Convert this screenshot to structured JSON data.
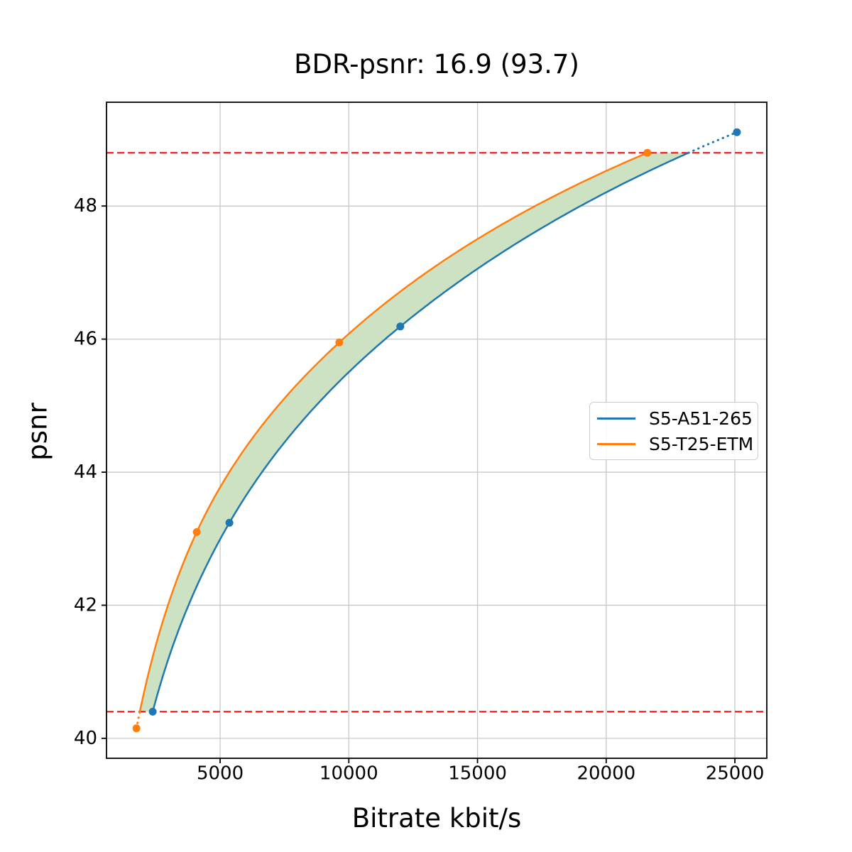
{
  "chart_data": {
    "type": "line",
    "title": "BDR-psnr: 16.9 (93.7)",
    "bdr_value": 16.9,
    "bdr_secondary_value": 93.7,
    "xlabel": "Bitrate kbit/s",
    "ylabel": "psnr",
    "xlim": [
      585,
      26240
    ],
    "ylim": [
      39.7,
      49.56
    ],
    "x_ticks": [
      5000,
      10000,
      15000,
      20000,
      25000
    ],
    "y_ticks": [
      40,
      42,
      44,
      46,
      48
    ],
    "grid": true,
    "grid_color": "#c8c8c8",
    "legend_position": "center-right",
    "bd_bounds": {
      "lower_psnr": 40.4,
      "upper_psnr": 48.8
    },
    "bound_line_color": "#ff0000",
    "shaded_region_color": "#cde2c3",
    "series": [
      {
        "name": "S5-A51-265",
        "color": "#1f77b4",
        "x": [
          2380,
          5360,
          12000,
          25080
        ],
        "y": [
          40.4,
          43.24,
          46.19,
          49.11
        ]
      },
      {
        "name": "S5-T25-ETM",
        "color": "#ff7f0e",
        "x": [
          1750,
          4090,
          9630,
          21600
        ],
        "y": [
          40.15,
          43.1,
          45.95,
          48.8
        ]
      }
    ]
  }
}
